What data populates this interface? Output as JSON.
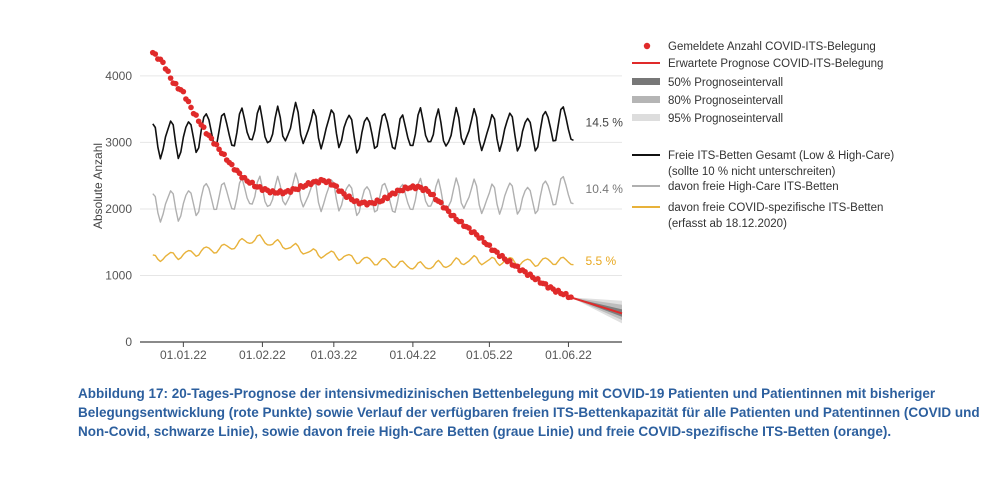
{
  "chart_data": {
    "type": "line",
    "title": "",
    "xlabel": "",
    "ylabel": "Absolute Anzahl",
    "ylim": [
      0,
      4600
    ],
    "yticks": [
      0,
      1000,
      2000,
      3000,
      4000
    ],
    "date_range": [
      "2021-12-15",
      "2022-06-22"
    ],
    "xticks": [
      {
        "date": "2022-01-01",
        "label": "01.01.22"
      },
      {
        "date": "2022-02-01",
        "label": "01.02.22"
      },
      {
        "date": "2022-03-01",
        "label": "01.03.22"
      },
      {
        "date": "2022-04-01",
        "label": "01.04.22"
      },
      {
        "date": "2022-05-01",
        "label": "01.05.22"
      },
      {
        "date": "2022-06-01",
        "label": "01.06.22"
      }
    ],
    "legend": [
      {
        "label": "Gemeldete Anzahl COVID-ITS-Belegung",
        "kind": "dot",
        "color": "#e02a2a"
      },
      {
        "label": "Erwartete Prognose COVID-ITS-Belegung",
        "kind": "line",
        "color": "#e02a2a"
      },
      {
        "label": "50% Prognoseintervall",
        "kind": "band",
        "color": "#777777"
      },
      {
        "label": "80% Prognoseintervall",
        "kind": "band",
        "color": "#b5b5b5"
      },
      {
        "label": "95% Prognoseintervall",
        "kind": "band",
        "color": "#dddddd"
      },
      {
        "label": "Freie ITS-Betten Gesamt (Low & High-Care)",
        "label2": "(sollte 10 % nicht unterschreiten)",
        "kind": "line",
        "color": "#111111"
      },
      {
        "label": "davon freie High-Care ITS-Betten",
        "kind": "line",
        "color": "#b0b0b0"
      },
      {
        "label": "davon freie COVID-spezifische ITS-Betten",
        "label2": "(erfasst ab 18.12.2020)",
        "kind": "line",
        "color": "#e8b23a"
      }
    ],
    "series": [
      {
        "name": "Gemeldete Anzahl COVID-ITS-Belegung",
        "kind": "markers",
        "color": "#e02a2a",
        "points": [
          [
            "2021-12-20",
            4350
          ],
          [
            "2021-12-24",
            4200
          ],
          [
            "2021-12-28",
            3900
          ],
          [
            "2022-01-01",
            3750
          ],
          [
            "2022-01-05",
            3450
          ],
          [
            "2022-01-10",
            3150
          ],
          [
            "2022-01-15",
            2900
          ],
          [
            "2022-01-20",
            2650
          ],
          [
            "2022-01-25",
            2450
          ],
          [
            "2022-01-30",
            2330
          ],
          [
            "2022-02-05",
            2250
          ],
          [
            "2022-02-10",
            2250
          ],
          [
            "2022-02-15",
            2310
          ],
          [
            "2022-02-20",
            2390
          ],
          [
            "2022-02-25",
            2430
          ],
          [
            "2022-03-01",
            2360
          ],
          [
            "2022-03-05",
            2220
          ],
          [
            "2022-03-10",
            2100
          ],
          [
            "2022-03-15",
            2080
          ],
          [
            "2022-03-20",
            2130
          ],
          [
            "2022-03-25",
            2250
          ],
          [
            "2022-03-30",
            2320
          ],
          [
            "2022-04-03",
            2330
          ],
          [
            "2022-04-07",
            2270
          ],
          [
            "2022-04-12",
            2080
          ],
          [
            "2022-04-17",
            1880
          ],
          [
            "2022-04-22",
            1730
          ],
          [
            "2022-04-27",
            1580
          ],
          [
            "2022-05-02",
            1400
          ],
          [
            "2022-05-07",
            1250
          ],
          [
            "2022-05-12",
            1120
          ],
          [
            "2022-05-17",
            1000
          ],
          [
            "2022-05-22",
            880
          ],
          [
            "2022-05-27",
            770
          ],
          [
            "2022-06-01",
            690
          ],
          [
            "2022-06-02",
            670
          ]
        ]
      },
      {
        "name": "Erwartete Prognose COVID-ITS-Belegung",
        "kind": "line",
        "color": "#e02a2a",
        "points": [
          [
            "2022-06-02",
            670
          ],
          [
            "2022-06-22",
            430
          ]
        ],
        "band95": [
          [
            "2022-06-02",
            670,
            670
          ],
          [
            "2022-06-22",
            280,
            620
          ]
        ],
        "band80": [
          [
            "2022-06-02",
            670,
            670
          ],
          [
            "2022-06-22",
            330,
            560
          ]
        ],
        "band50": [
          [
            "2022-06-02",
            670,
            670
          ],
          [
            "2022-06-22",
            380,
            490
          ]
        ]
      },
      {
        "name": "Freie ITS-Betten Gesamt (Low & High-Care)",
        "kind": "line",
        "color": "#111111",
        "base": [
          [
            "2021-12-20",
            3000
          ],
          [
            "2022-01-15",
            3200
          ],
          [
            "2022-02-15",
            3250
          ],
          [
            "2022-03-15",
            3150
          ],
          [
            "2022-04-15",
            3200
          ],
          [
            "2022-05-15",
            3150
          ],
          [
            "2022-06-03",
            3300
          ]
        ],
        "weekly_amplitude": 280,
        "end_label": "14.5 %"
      },
      {
        "name": "davon freie High-Care ITS-Betten",
        "kind": "line",
        "color": "#b0b0b0",
        "base": [
          [
            "2021-12-20",
            2000
          ],
          [
            "2022-01-15",
            2200
          ],
          [
            "2022-02-15",
            2250
          ],
          [
            "2022-03-15",
            2150
          ],
          [
            "2022-04-15",
            2200
          ],
          [
            "2022-05-15",
            2150
          ],
          [
            "2022-06-03",
            2300
          ]
        ],
        "weekly_amplitude": 230,
        "end_label": "10.4 %"
      },
      {
        "name": "davon freie COVID-spezifische ITS-Betten",
        "kind": "line",
        "color": "#e8b23a",
        "base": [
          [
            "2021-12-20",
            1250
          ],
          [
            "2022-01-15",
            1400
          ],
          [
            "2022-01-30",
            1550
          ],
          [
            "2022-02-20",
            1350
          ],
          [
            "2022-03-15",
            1220
          ],
          [
            "2022-04-05",
            1130
          ],
          [
            "2022-04-25",
            1230
          ],
          [
            "2022-05-15",
            1200
          ],
          [
            "2022-06-03",
            1220
          ]
        ],
        "weekly_amplitude": 60,
        "end_label": "5.5 %"
      }
    ],
    "end_label_colors": [
      "#444444",
      "#777777",
      "#e8a820"
    ]
  },
  "caption": "Abbildung 17: 20-Tages-Prognose der intensivmedizinischen Bettenbelegung mit COVID-19 Patienten und Patientinnen mit bisheriger Belegungsentwicklung (rote Punkte) sowie Verlauf der verfügbaren freien ITS-Bettenkapazität für alle Patienten und Patentinnen (COVID und Non-Covid, schwarze Linie), sowie davon freie High-Care Betten (graue Linie) und freie COVID-spezifische ITS-Betten (orange)."
}
